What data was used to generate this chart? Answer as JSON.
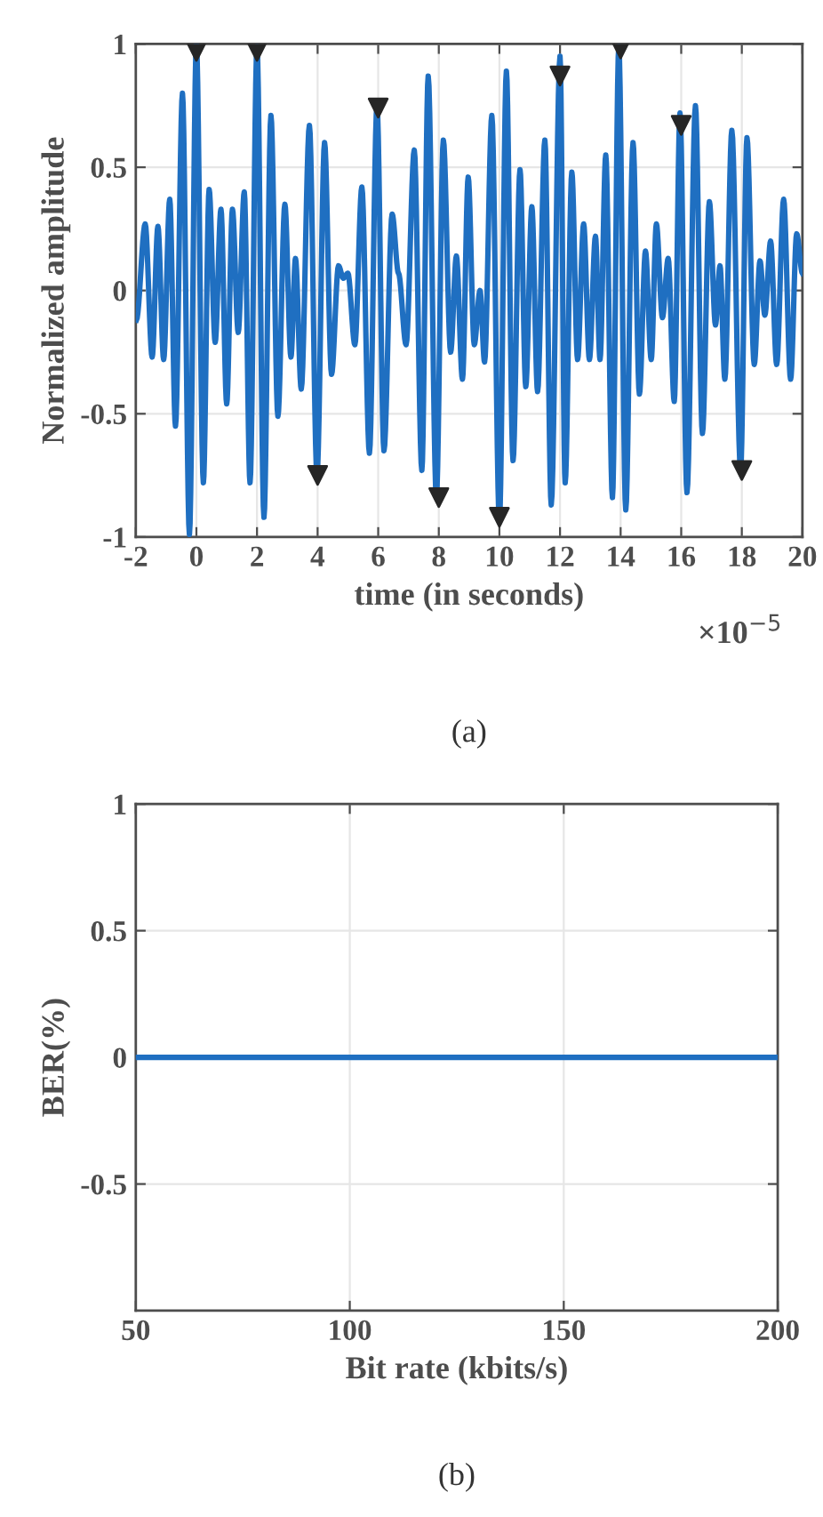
{
  "chart_data": [
    {
      "type": "line",
      "xlabel": "time (in seconds)",
      "ylabel": "Normalized amplitude",
      "annotations": [
        "×10$^{−5}$",
        "(a)"
      ],
      "xlim": [
        -2,
        20
      ],
      "ylim": [
        -1,
        1
      ],
      "xticks": [
        -2,
        0,
        2,
        4,
        6,
        8,
        10,
        12,
        14,
        16,
        18,
        20
      ],
      "yticks": [
        -1,
        -0.5,
        0,
        0.5,
        1
      ],
      "grid": true,
      "legend": false,
      "series": [
        {
          "color": "#1f6fc1",
          "line_style": "solid",
          "marker": "none",
          "x": [
            -1.98,
            -1.69,
            -1.46,
            -1.27,
            -1.08,
            -0.88,
            -0.69,
            -0.46,
            -0.23,
            0,
            0.23,
            0.42,
            0.62,
            0.81,
            1.0,
            1.19,
            1.38,
            1.58,
            1.77,
            2.0,
            2.23,
            2.46,
            2.69,
            2.92,
            3.12,
            3.27,
            3.46,
            3.73,
            3.98,
            4.23,
            4.46,
            4.69,
            4.85,
            5.0,
            5.23,
            5.46,
            5.71,
            5.96,
            6.19,
            6.46,
            6.67,
            6.92,
            7.19,
            7.44,
            7.65,
            7.92,
            8.15,
            8.39,
            8.58,
            8.78,
            8.97,
            9.17,
            9.36,
            9.51,
            9.75,
            10.0,
            10.23,
            10.45,
            10.68,
            10.87,
            11.07,
            11.26,
            11.5,
            11.71,
            12.0,
            12.17,
            12.39,
            12.58,
            12.78,
            12.97,
            13.17,
            13.32,
            13.51,
            13.73,
            13.94,
            14.17,
            14.41,
            14.62,
            14.82,
            15.01,
            15.18,
            15.38,
            15.57,
            15.77,
            15.96,
            16.19,
            16.47,
            16.7,
            16.93,
            17.13,
            17.28,
            17.44,
            17.67,
            17.96,
            18.17,
            18.41,
            18.6,
            18.76,
            18.95,
            19.15,
            19.38,
            19.61,
            19.81,
            20
          ],
          "values": [
            -0.12,
            0.27,
            -0.27,
            0.26,
            -0.28,
            0.37,
            -0.55,
            0.8,
            -0.99,
            1.0,
            -0.78,
            0.41,
            -0.21,
            0.33,
            -0.46,
            0.33,
            -0.17,
            0.4,
            -0.78,
            0.99,
            -0.92,
            0.71,
            -0.51,
            0.35,
            -0.27,
            0.13,
            -0.4,
            0.67,
            -0.75,
            0.6,
            -0.34,
            0.1,
            0.05,
            0.07,
            -0.22,
            0.42,
            -0.66,
            0.75,
            -0.65,
            0.31,
            0.07,
            -0.22,
            0.57,
            -0.73,
            0.87,
            -0.84,
            0.61,
            -0.25,
            0.14,
            -0.36,
            0.46,
            -0.22,
            0.0,
            -0.29,
            0.71,
            -0.94,
            0.89,
            -0.69,
            0.49,
            -0.39,
            0.34,
            -0.41,
            0.61,
            -0.87,
            0.95,
            -0.78,
            0.48,
            -0.28,
            0.27,
            -0.28,
            0.22,
            -0.28,
            0.55,
            -0.84,
            0.99,
            -0.89,
            0.6,
            -0.42,
            0.16,
            -0.28,
            0.27,
            -0.11,
            0.13,
            -0.45,
            0.72,
            -0.82,
            0.75,
            -0.58,
            0.36,
            -0.14,
            0.1,
            -0.36,
            0.65,
            -0.73,
            0.62,
            -0.3,
            0.12,
            -0.1,
            0.2,
            -0.3,
            0.37,
            -0.36,
            0.23,
            0.07
          ]
        },
        {
          "type": "scatter",
          "color": "#262626",
          "marker": "triangle",
          "x": [
            0,
            2,
            4,
            6,
            8,
            10,
            12,
            14,
            16,
            18
          ],
          "values": [
            0.97,
            0.97,
            -0.75,
            0.74,
            -0.84,
            -0.92,
            0.87,
            0.98,
            0.67,
            -0.73
          ]
        }
      ]
    },
    {
      "type": "line",
      "xlabel": "Bit rate (kbits/s)",
      "ylabel": "BER(%)",
      "annotations": [
        "(b)"
      ],
      "xlim": [
        50,
        200
      ],
      "ylim": [
        -1,
        1
      ],
      "xticks": [
        50,
        100,
        150,
        200
      ],
      "yticks": [
        -0.5,
        0,
        0.5,
        1
      ],
      "grid": true,
      "legend": false,
      "series": [
        {
          "color": "#1f6fc1",
          "line_style": "solid",
          "marker": "none",
          "x": [
            50,
            200
          ],
          "values": [
            0,
            0
          ]
        }
      ]
    }
  ]
}
